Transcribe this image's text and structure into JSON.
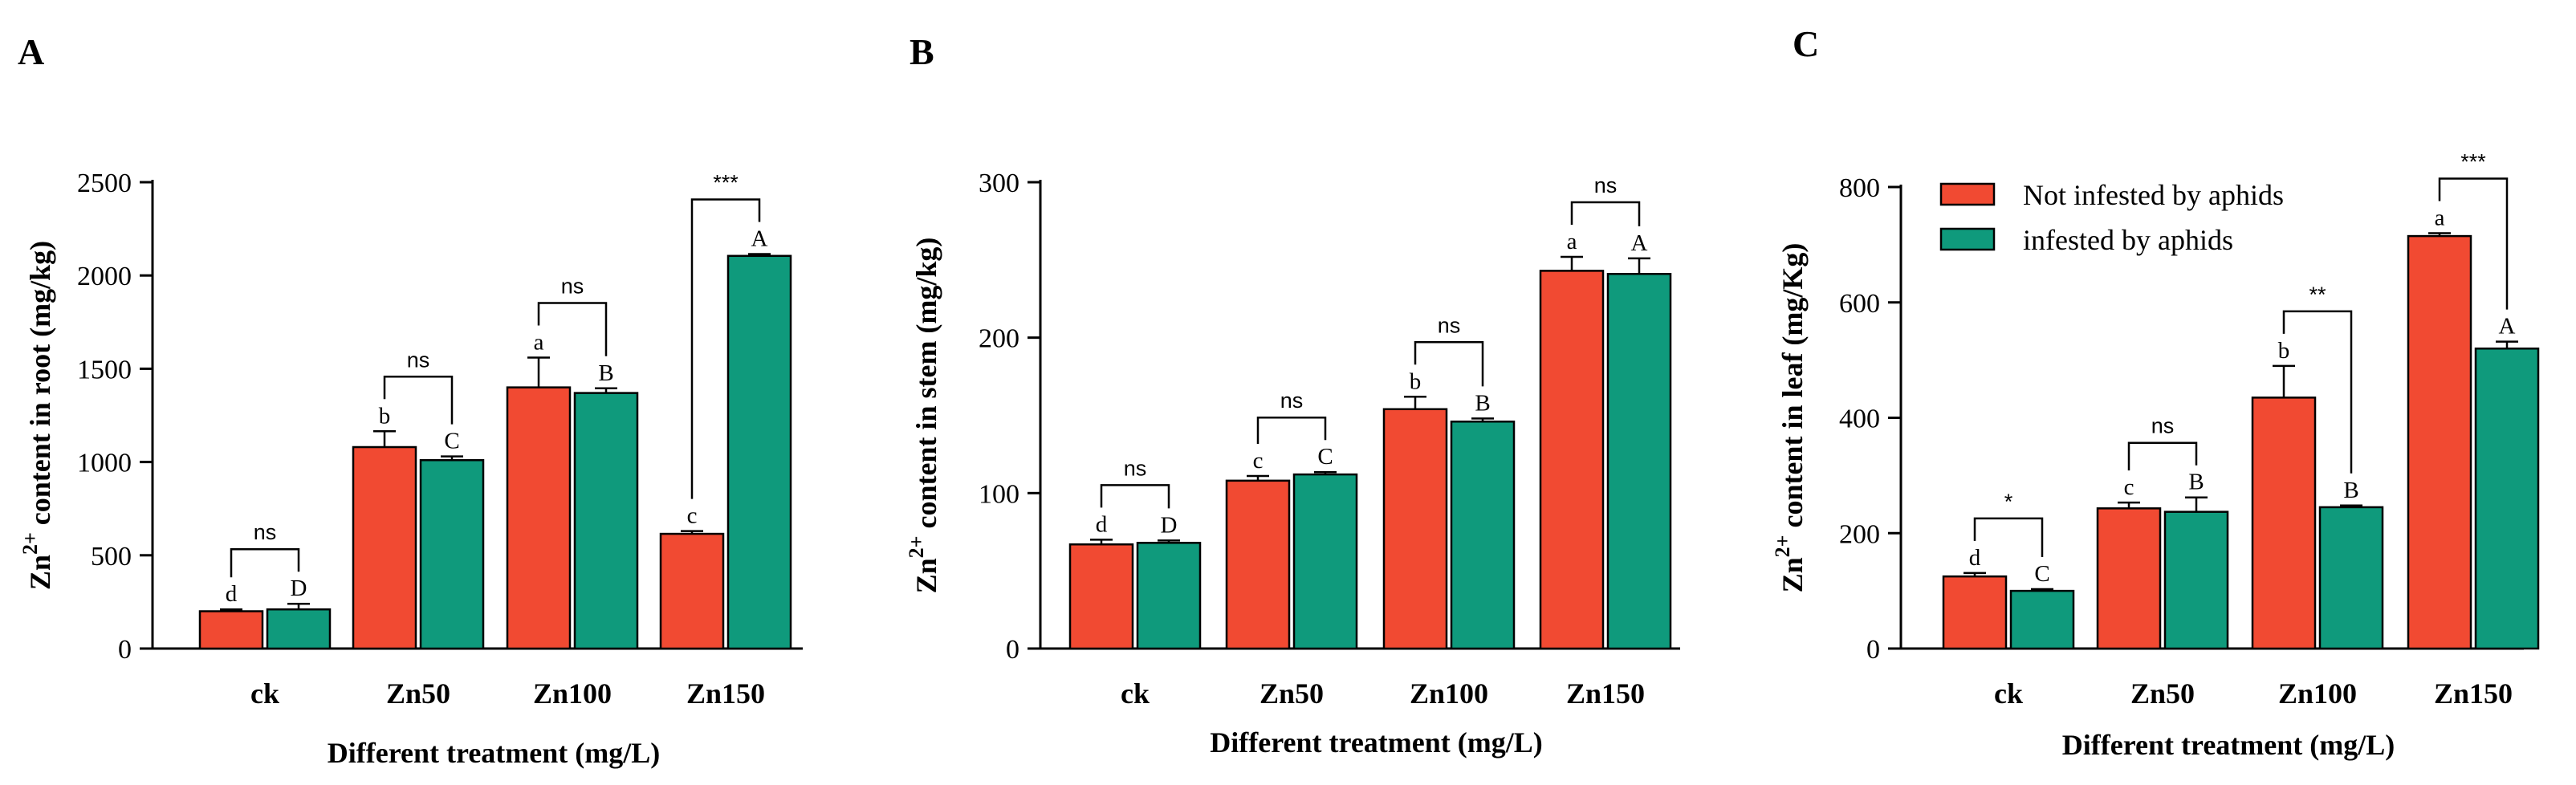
{
  "colors": {
    "not_infested": "#f14a32",
    "infested": "#0f9a7c"
  },
  "legend": [
    "Not infested by aphids",
    "infested by aphids"
  ],
  "chart_data": [
    {
      "type": "bar",
      "panel": "A",
      "categories": [
        "ck",
        "Zn50",
        "Zn100",
        "Zn150"
      ],
      "xlabel": "Different treatment (mg/L)",
      "ylabel_prefix": "Zn",
      "ylabel_sup": "2+",
      "ylabel_rest": " content in root (mg/kg)",
      "ylim": [
        0,
        2500
      ],
      "yticks": [
        0,
        500,
        1000,
        1500,
        2000,
        2500
      ],
      "series": [
        {
          "name": "Not infested by aphids",
          "values": [
            200,
            1080,
            1400,
            615
          ],
          "errors": [
            10,
            85,
            160,
            15
          ],
          "letters": [
            "d",
            "b",
            "a",
            "c"
          ]
        },
        {
          "name": "infested by aphids",
          "values": [
            210,
            1010,
            1370,
            2105
          ],
          "errors": [
            30,
            20,
            25,
            10
          ],
          "letters": [
            "D",
            "C",
            "B",
            "A"
          ]
        }
      ],
      "significance": [
        "ns",
        "ns",
        "ns",
        "***"
      ]
    },
    {
      "type": "bar",
      "panel": "B",
      "categories": [
        "ck",
        "Zn50",
        "Zn100",
        "Zn150"
      ],
      "xlabel": "Different treatment (mg/L)",
      "ylabel_prefix": "Zn",
      "ylabel_sup": "2+",
      "ylabel_rest": " content in stem (mg/kg)",
      "ylim": [
        0,
        300
      ],
      "yticks": [
        0,
        100,
        200,
        300
      ],
      "series": [
        {
          "name": "Not infested by aphids",
          "values": [
            67,
            108,
            154,
            243
          ],
          "errors": [
            3,
            3,
            8,
            9
          ],
          "letters": [
            "d",
            "c",
            "b",
            "a"
          ]
        },
        {
          "name": "infested by aphids",
          "values": [
            68,
            112,
            146,
            241
          ],
          "errors": [
            1.5,
            1.5,
            2,
            10
          ],
          "letters": [
            "D",
            "C",
            "B",
            "A"
          ]
        }
      ],
      "significance": [
        "ns",
        "ns",
        "ns",
        "ns"
      ]
    },
    {
      "type": "bar",
      "panel": "C",
      "categories": [
        "ck",
        "Zn50",
        "Zn100",
        "Zn150"
      ],
      "xlabel": "Different treatment (mg/L)",
      "ylabel_prefix": "Zn",
      "ylabel_sup": "2+",
      "ylabel_rest": " content in leaf (mg/Kg)",
      "ylim": [
        0,
        800
      ],
      "yticks": [
        0,
        200,
        400,
        600,
        800
      ],
      "legend_position": "top-left",
      "series": [
        {
          "name": "Not infested by aphids",
          "values": [
            125,
            243,
            435,
            715
          ],
          "errors": [
            6,
            10,
            55,
            5
          ],
          "letters": [
            "d",
            "c",
            "b",
            "a"
          ]
        },
        {
          "name": "infested by aphids",
          "values": [
            100,
            237,
            245,
            520
          ],
          "errors": [
            3,
            25,
            3,
            12
          ],
          "letters": [
            "C",
            "B",
            "B",
            "A"
          ]
        }
      ],
      "significance": [
        "*",
        "ns",
        "**",
        "***"
      ]
    }
  ]
}
